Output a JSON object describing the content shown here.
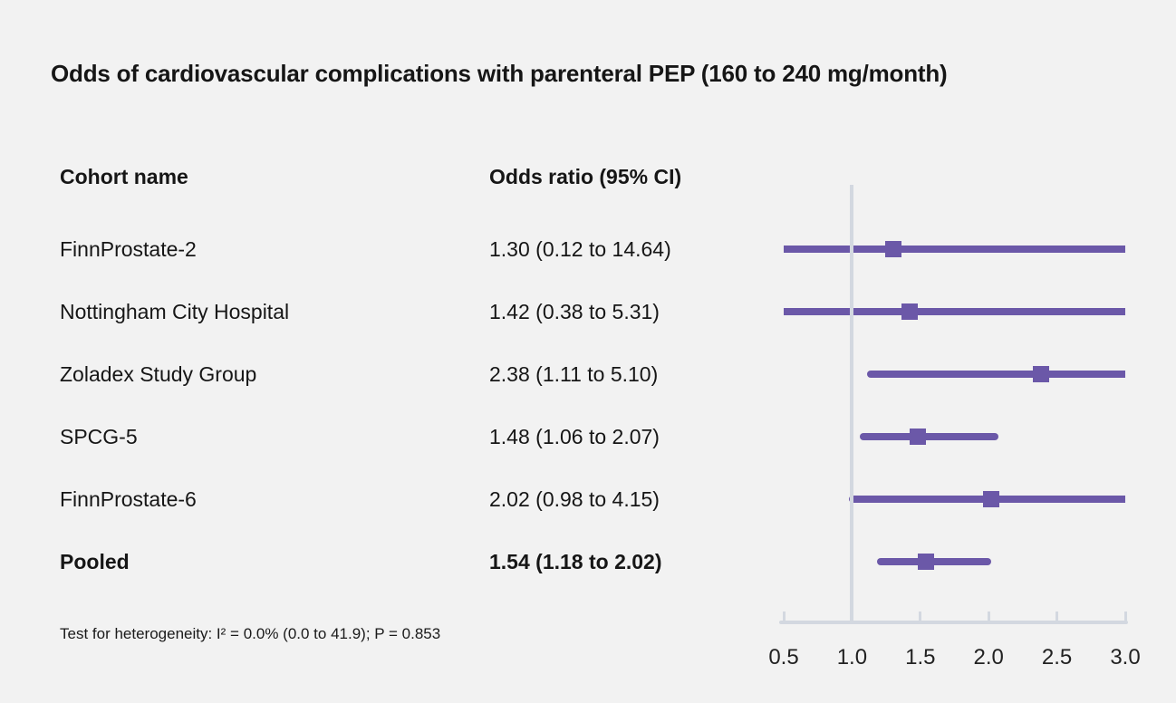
{
  "chart_data": {
    "type": "forest",
    "title": "Odds of cardiovascular complications with parenteral PEP (160 to 240 mg/month)",
    "columns": {
      "cohort": "Cohort name",
      "odds": "Odds ratio (95% CI)"
    },
    "studies": [
      {
        "name": "FinnProstate-2",
        "or_text": "1.30 (0.12 to 14.64)",
        "or": 1.3,
        "ci_low": 0.12,
        "ci_high": 14.64,
        "pooled": false
      },
      {
        "name": "Nottingham City Hospital",
        "or_text": "1.42 (0.38 to 5.31)",
        "or": 1.42,
        "ci_low": 0.38,
        "ci_high": 5.31,
        "pooled": false
      },
      {
        "name": "Zoladex Study Group",
        "or_text": "2.38 (1.11 to 5.10)",
        "or": 2.38,
        "ci_low": 1.11,
        "ci_high": 5.1,
        "pooled": false
      },
      {
        "name": "SPCG-5",
        "or_text": "1.48 (1.06 to 2.07)",
        "or": 1.48,
        "ci_low": 1.06,
        "ci_high": 2.07,
        "pooled": false
      },
      {
        "name": "FinnProstate-6",
        "or_text": "2.02 (0.98 to 4.15)",
        "or": 2.02,
        "ci_low": 0.98,
        "ci_high": 4.15,
        "pooled": false
      },
      {
        "name": "Pooled",
        "or_text": "1.54 (1.18 to 2.02)",
        "or": 1.54,
        "ci_low": 1.18,
        "ci_high": 2.02,
        "pooled": true
      }
    ],
    "axis": {
      "min": 0.5,
      "max": 3.0,
      "ticks": [
        0.5,
        1.0,
        1.5,
        2.0,
        2.5,
        3.0
      ],
      "tick_labels": [
        "0.5",
        "1.0",
        "1.5",
        "2.0",
        "2.5",
        "3.0"
      ],
      "reference_line": 1.0
    },
    "footnote": "Test for heterogeneity: I² = 0.0% (0.0 to 41.9); P = 0.853",
    "colors": {
      "marker": "#6b58a8",
      "axis": "#d3d8e0",
      "background": "#f2f2f2",
      "text": "#161616"
    }
  }
}
